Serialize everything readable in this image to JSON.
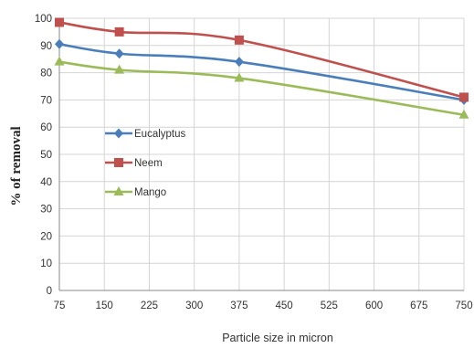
{
  "chart_data": {
    "type": "line",
    "x": [
      75,
      175,
      375,
      750
    ],
    "xticks": [
      75,
      150,
      225,
      300,
      375,
      450,
      525,
      600,
      675,
      750
    ],
    "xlim": [
      75,
      750
    ],
    "ylim": [
      0,
      100
    ],
    "yticks": [
      0,
      10,
      20,
      30,
      40,
      50,
      60,
      70,
      80,
      90,
      100
    ],
    "xlabel": "Particle size in micron",
    "ylabel": "% of removal",
    "grid": true,
    "legend": "center-left",
    "series": [
      {
        "name": "Eucalyptus",
        "values": [
          90.5,
          87,
          84,
          70
        ],
        "color": "#4a7ebb",
        "marker": "diamond"
      },
      {
        "name": "Neem",
        "values": [
          98.5,
          95,
          92,
          71
        ],
        "color": "#c0504d",
        "marker": "square"
      },
      {
        "name": "Mango",
        "values": [
          84,
          81,
          78,
          64.5
        ],
        "color": "#9bbb59",
        "marker": "triangle"
      }
    ]
  }
}
